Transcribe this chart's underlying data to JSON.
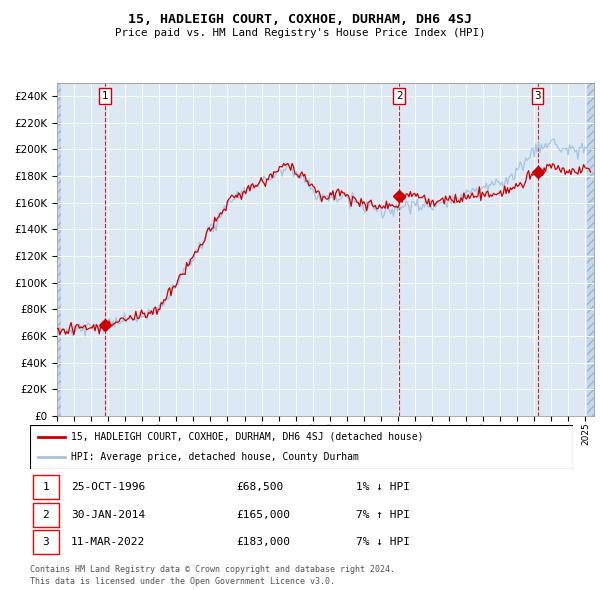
{
  "title": "15, HADLEIGH COURT, COXHOE, DURHAM, DH6 4SJ",
  "subtitle": "Price paid vs. HM Land Registry's House Price Index (HPI)",
  "ylim": [
    0,
    250000
  ],
  "yticks": [
    0,
    20000,
    40000,
    60000,
    80000,
    100000,
    120000,
    140000,
    160000,
    180000,
    200000,
    220000,
    240000
  ],
  "hpi_color": "#a8c4de",
  "price_color": "#cc0000",
  "bg_color": "#dce9f5",
  "grid_color": "#ffffff",
  "vline_color": "#cc0000",
  "sale_points": [
    {
      "date_num": 1996.82,
      "price": 68500,
      "label": "1"
    },
    {
      "date_num": 2014.08,
      "price": 165000,
      "label": "2"
    },
    {
      "date_num": 2022.19,
      "price": 183000,
      "label": "3"
    }
  ],
  "sale_dates_str": [
    "25-OCT-1996",
    "30-JAN-2014",
    "11-MAR-2022"
  ],
  "sale_prices_str": [
    "£68,500",
    "£165,000",
    "£183,000"
  ],
  "sale_hpi_str": [
    "1% ↓ HPI",
    "7% ↑ HPI",
    "7% ↓ HPI"
  ],
  "legend1": "15, HADLEIGH COURT, COXHOE, DURHAM, DH6 4SJ (detached house)",
  "legend2": "HPI: Average price, detached house, County Durham",
  "footnote1": "Contains HM Land Registry data © Crown copyright and database right 2024.",
  "footnote2": "This data is licensed under the Open Government Licence v3.0.",
  "xmin": 1994.0,
  "xmax": 2025.5
}
